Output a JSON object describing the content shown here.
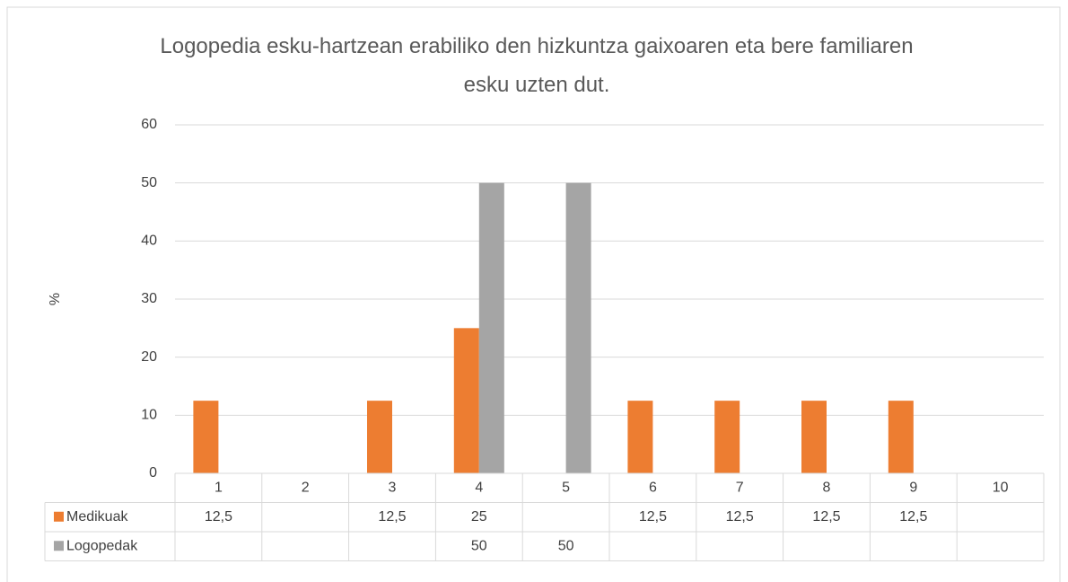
{
  "chart_data": {
    "type": "bar",
    "title": "Logopedia esku-hartzean erabiliko den hizkuntza gaixoaren eta bere familiaren esku uzten dut.",
    "y_label": "%",
    "categories": [
      "1",
      "2",
      "3",
      "4",
      "5",
      "6",
      "7",
      "8",
      "9",
      "10"
    ],
    "series": [
      {
        "name": "Medikuak",
        "color": "#ed7d31",
        "values": [
          12.5,
          null,
          12.5,
          25,
          null,
          12.5,
          12.5,
          12.5,
          12.5,
          null
        ],
        "value_labels": [
          "12,5",
          null,
          "12,5",
          "25",
          null,
          "12,5",
          "12,5",
          "12,5",
          "12,5",
          null
        ]
      },
      {
        "name": "Logopedak",
        "color": "#a5a5a5",
        "values": [
          null,
          null,
          null,
          50,
          50,
          null,
          null,
          null,
          null,
          null
        ],
        "value_labels": [
          null,
          null,
          null,
          "50",
          "50",
          null,
          null,
          null,
          null,
          null
        ]
      }
    ],
    "ylim": [
      0,
      60
    ],
    "yticks": [
      0,
      10,
      20,
      30,
      40,
      50,
      60
    ],
    "grid": true,
    "data_table": true
  }
}
